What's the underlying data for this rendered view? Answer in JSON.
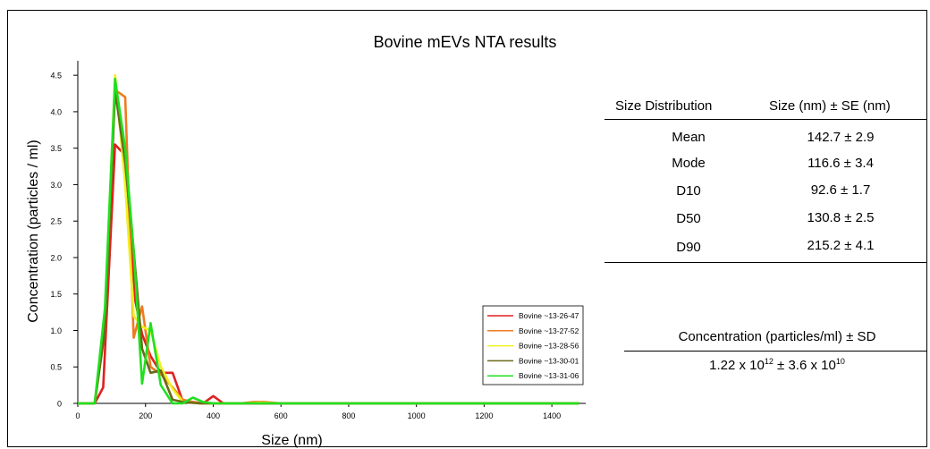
{
  "chart_data": {
    "type": "line",
    "title": "Bovine mEVs NTA results",
    "xlabel": "Size (nm)",
    "ylabel": "Concentration (particles / ml)",
    "xlim": [
      0,
      1500
    ],
    "ylim": [
      0,
      4.6
    ],
    "xticks": [
      0,
      200,
      400,
      600,
      800,
      1000,
      1200,
      1400
    ],
    "yticks": [
      0,
      0.5,
      1.0,
      1.5,
      2.0,
      2.5,
      3.0,
      3.5,
      4.0,
      4.5
    ],
    "ytick_labels": [
      "0",
      "0.5",
      "1.0",
      "1.5",
      "2.0",
      "2.5",
      "3.0",
      "3.5",
      "4.0",
      "4.5"
    ],
    "grid": false,
    "legend_position": "bottom-right",
    "series": [
      {
        "name": "Bovine ~13-26-47",
        "color": "#e02020",
        "x": [
          0,
          50,
          75,
          110,
          140,
          170,
          190,
          215,
          245,
          280,
          310,
          340,
          370,
          400,
          430,
          470,
          520,
          560,
          600,
          1480
        ],
        "y": [
          0,
          0,
          0.22,
          3.55,
          3.4,
          1.4,
          0.95,
          0.65,
          0.42,
          0.42,
          0.03,
          0.02,
          0.0,
          0.1,
          0.0,
          0.0,
          0.0,
          0.0,
          0.0,
          0.0
        ]
      },
      {
        "name": "Bovine ~13-27-52",
        "color": "#f07a20",
        "x": [
          0,
          50,
          80,
          110,
          140,
          165,
          190,
          215,
          245,
          280,
          310,
          360,
          420,
          480,
          520,
          550,
          600,
          1480
        ],
        "y": [
          0,
          0,
          1.0,
          4.3,
          4.2,
          0.9,
          1.33,
          0.5,
          0.4,
          0.22,
          0.05,
          0.0,
          0.0,
          0.0,
          0.02,
          0.02,
          0.0,
          0.0
        ]
      },
      {
        "name": "Bovine ~13-28-56",
        "color": "#f0f020",
        "x": [
          0,
          50,
          80,
          110,
          140,
          165,
          190,
          215,
          245,
          280,
          310,
          360,
          420,
          480,
          540,
          600,
          1480
        ],
        "y": [
          0,
          0,
          1.2,
          4.5,
          3.0,
          1.2,
          1.05,
          1.0,
          0.5,
          0.2,
          0.02,
          0.0,
          0.0,
          0.0,
          0.01,
          0.0,
          0.0
        ]
      },
      {
        "name": "Bovine ~13-30-01",
        "color": "#6a6a1a",
        "x": [
          0,
          50,
          80,
          110,
          140,
          165,
          190,
          215,
          245,
          280,
          310,
          360,
          420,
          480,
          540,
          600,
          1480
        ],
        "y": [
          0,
          0,
          1.0,
          4.3,
          3.3,
          2.1,
          0.75,
          0.42,
          0.45,
          0.05,
          0.02,
          0.0,
          0.0,
          0.0,
          0.0,
          0.0,
          0.0
        ]
      },
      {
        "name": "Bovine ~13-31-06",
        "color": "#20e020",
        "x": [
          0,
          50,
          80,
          110,
          140,
          165,
          190,
          215,
          245,
          280,
          310,
          340,
          370,
          400,
          440,
          480,
          540,
          600,
          1480
        ],
        "y": [
          0,
          0,
          1.3,
          4.45,
          3.5,
          2.1,
          0.27,
          1.1,
          0.25,
          0.0,
          0.0,
          0.08,
          0.02,
          0.0,
          0.0,
          0.0,
          0.0,
          0.0,
          0.0
        ]
      }
    ]
  },
  "size_table": {
    "header_col1": "Size Distribution",
    "header_col2": "Size (nm) ± SE (nm)",
    "rows": [
      {
        "label": "Mean",
        "value": "142.7 ± 2.9"
      },
      {
        "label": "Mode",
        "value": "116.6 ± 3.4"
      },
      {
        "label": "D10",
        "value": "92.6 ± 1.7"
      },
      {
        "label": "D50",
        "value": "130.8 ± 2.5"
      },
      {
        "label": "D90",
        "value": "215.2 ± 4.1"
      }
    ]
  },
  "concentration_table": {
    "header": "Concentration (particles/ml) ± SD",
    "value_mantissa": "1.22 x 10",
    "value_exp": "12",
    "value_pm": " ± 3.6 x 10",
    "value_exp2": "10"
  }
}
